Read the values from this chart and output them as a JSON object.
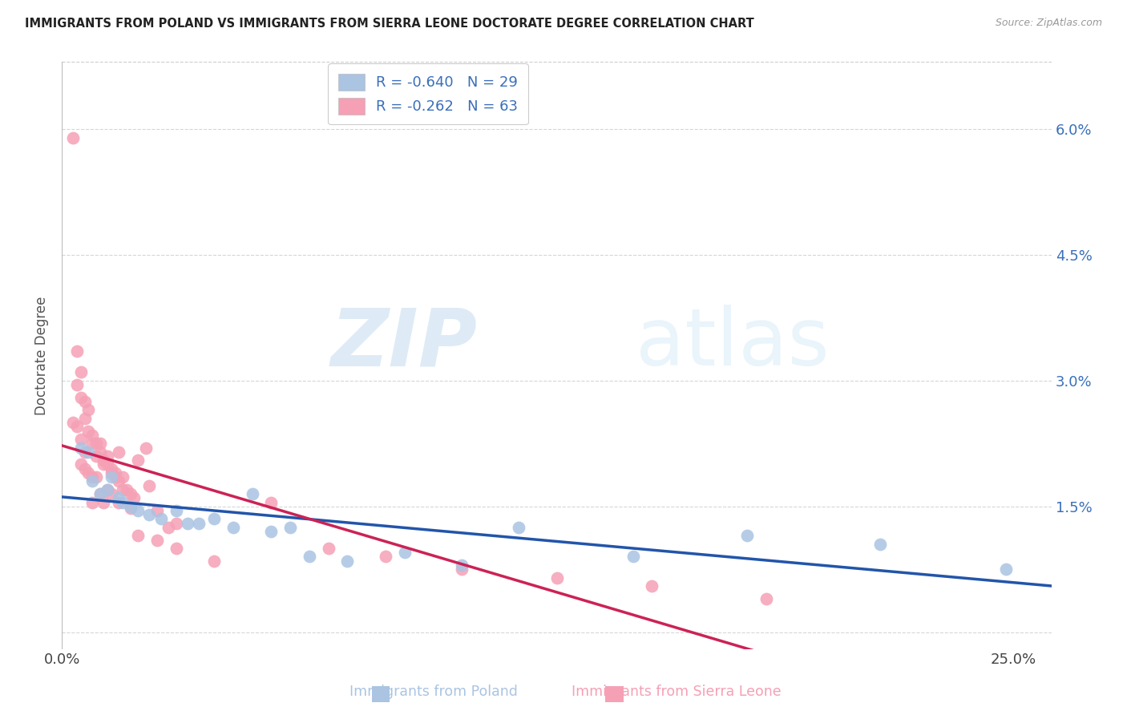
{
  "title": "IMMIGRANTS FROM POLAND VS IMMIGRANTS FROM SIERRA LEONE DOCTORATE DEGREE CORRELATION CHART",
  "source": "Source: ZipAtlas.com",
  "ylabel": "Doctorate Degree",
  "ytick_labels": [
    "",
    "1.5%",
    "3.0%",
    "4.5%",
    "6.0%"
  ],
  "ytick_values": [
    0.0,
    0.015,
    0.03,
    0.045,
    0.06
  ],
  "xtick_positions": [
    0.0,
    0.05,
    0.1,
    0.15,
    0.2,
    0.25
  ],
  "xtick_labels": [
    "0.0%",
    "",
    "",
    "",
    "",
    "25.0%"
  ],
  "xlim": [
    0.0,
    0.26
  ],
  "ylim": [
    -0.002,
    0.068
  ],
  "legend_r1": "R = -0.640   N = 29",
  "legend_r2": "R = -0.262   N = 63",
  "watermark_zip": "ZIP",
  "watermark_atlas": "atlas",
  "poland_color": "#aac4e2",
  "poland_line_color": "#2255aa",
  "sierra_leone_color": "#f5a0b5",
  "sierra_leone_line_color": "#cc2255",
  "legend_text_color": "#3a6fba",
  "right_axis_color": "#3a6fba",
  "background_color": "#ffffff",
  "grid_color": "#cccccc",
  "poland_x": [
    0.005,
    0.007,
    0.008,
    0.01,
    0.012,
    0.013,
    0.015,
    0.016,
    0.018,
    0.02,
    0.023,
    0.026,
    0.03,
    0.033,
    0.036,
    0.04,
    0.045,
    0.05,
    0.055,
    0.06,
    0.065,
    0.075,
    0.09,
    0.105,
    0.12,
    0.15,
    0.18,
    0.215,
    0.248
  ],
  "poland_y": [
    0.022,
    0.0215,
    0.018,
    0.0165,
    0.017,
    0.0185,
    0.016,
    0.0155,
    0.015,
    0.0145,
    0.014,
    0.0135,
    0.0145,
    0.013,
    0.013,
    0.0135,
    0.0125,
    0.0165,
    0.012,
    0.0125,
    0.009,
    0.0085,
    0.0095,
    0.008,
    0.0125,
    0.009,
    0.0115,
    0.0105,
    0.0075
  ],
  "sierra_leone_x": [
    0.003,
    0.004,
    0.004,
    0.005,
    0.005,
    0.006,
    0.006,
    0.007,
    0.007,
    0.008,
    0.008,
    0.009,
    0.009,
    0.01,
    0.01,
    0.011,
    0.011,
    0.012,
    0.012,
    0.013,
    0.013,
    0.014,
    0.014,
    0.015,
    0.015,
    0.016,
    0.016,
    0.017,
    0.018,
    0.019,
    0.02,
    0.022,
    0.023,
    0.025,
    0.028,
    0.03,
    0.003,
    0.004,
    0.005,
    0.006,
    0.007,
    0.008,
    0.009,
    0.01,
    0.011,
    0.012,
    0.013,
    0.015,
    0.018,
    0.02,
    0.025,
    0.03,
    0.04,
    0.055,
    0.07,
    0.085,
    0.105,
    0.13,
    0.155,
    0.185,
    0.005,
    0.006,
    0.008
  ],
  "sierra_leone_y": [
    0.059,
    0.0335,
    0.0295,
    0.031,
    0.028,
    0.0275,
    0.0255,
    0.0265,
    0.024,
    0.0235,
    0.0225,
    0.0225,
    0.021,
    0.0225,
    0.0215,
    0.02,
    0.0205,
    0.02,
    0.021,
    0.019,
    0.0195,
    0.019,
    0.0185,
    0.0215,
    0.018,
    0.0185,
    0.017,
    0.017,
    0.0165,
    0.016,
    0.0205,
    0.022,
    0.0175,
    0.0145,
    0.0125,
    0.013,
    0.025,
    0.0245,
    0.02,
    0.0195,
    0.019,
    0.0185,
    0.0185,
    0.0165,
    0.0155,
    0.017,
    0.0165,
    0.0155,
    0.0148,
    0.0115,
    0.011,
    0.01,
    0.0085,
    0.0155,
    0.01,
    0.009,
    0.0075,
    0.0065,
    0.0055,
    0.004,
    0.023,
    0.0215,
    0.0155
  ]
}
